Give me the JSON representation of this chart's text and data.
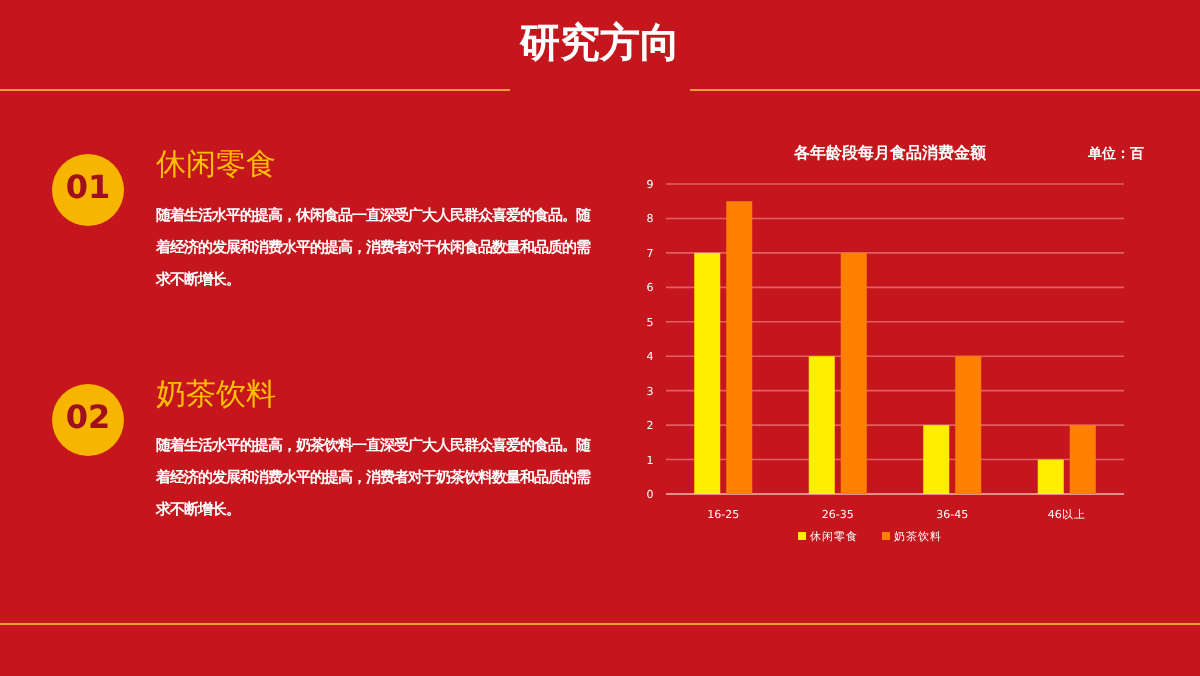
{
  "chart_data": {
    "type": "bar",
    "title": "各年龄段每月食品消费金额",
    "annotations": [
      "研究方向",
      "01",
      "休闲零食",
      "随着生活水平的提高，休闲食品一直深受广大人民群众喜爱的食品。随着经济的发展和消费水平的提高，消费者对于休闲食品数量和品质的需求不断增长。",
      "02",
      "奶茶饮料",
      "随着生活水平的提高，奶茶饮料一直深受广大人民群众喜爱的食品。随着经济的发展和消费水平的提高，消费者对于奶茶饮料数量和品质的需求不断增长。",
      "单位：百"
    ],
    "categories": [
      "16-25",
      "26-35",
      "36-45",
      "46以上"
    ],
    "series": [
      {
        "name": "休闲零食",
        "color": "#ffee00",
        "values": [
          7,
          4,
          2,
          1
        ]
      },
      {
        "name": "奶茶饮料",
        "color": "#ff7f00",
        "values": [
          8.5,
          7,
          4,
          2
        ]
      }
    ],
    "ylim": [
      0,
      9
    ],
    "yticks": [
      0,
      1,
      2,
      3,
      4,
      5,
      6,
      7,
      8,
      9
    ],
    "grid": "y",
    "legend": "bottom"
  }
}
